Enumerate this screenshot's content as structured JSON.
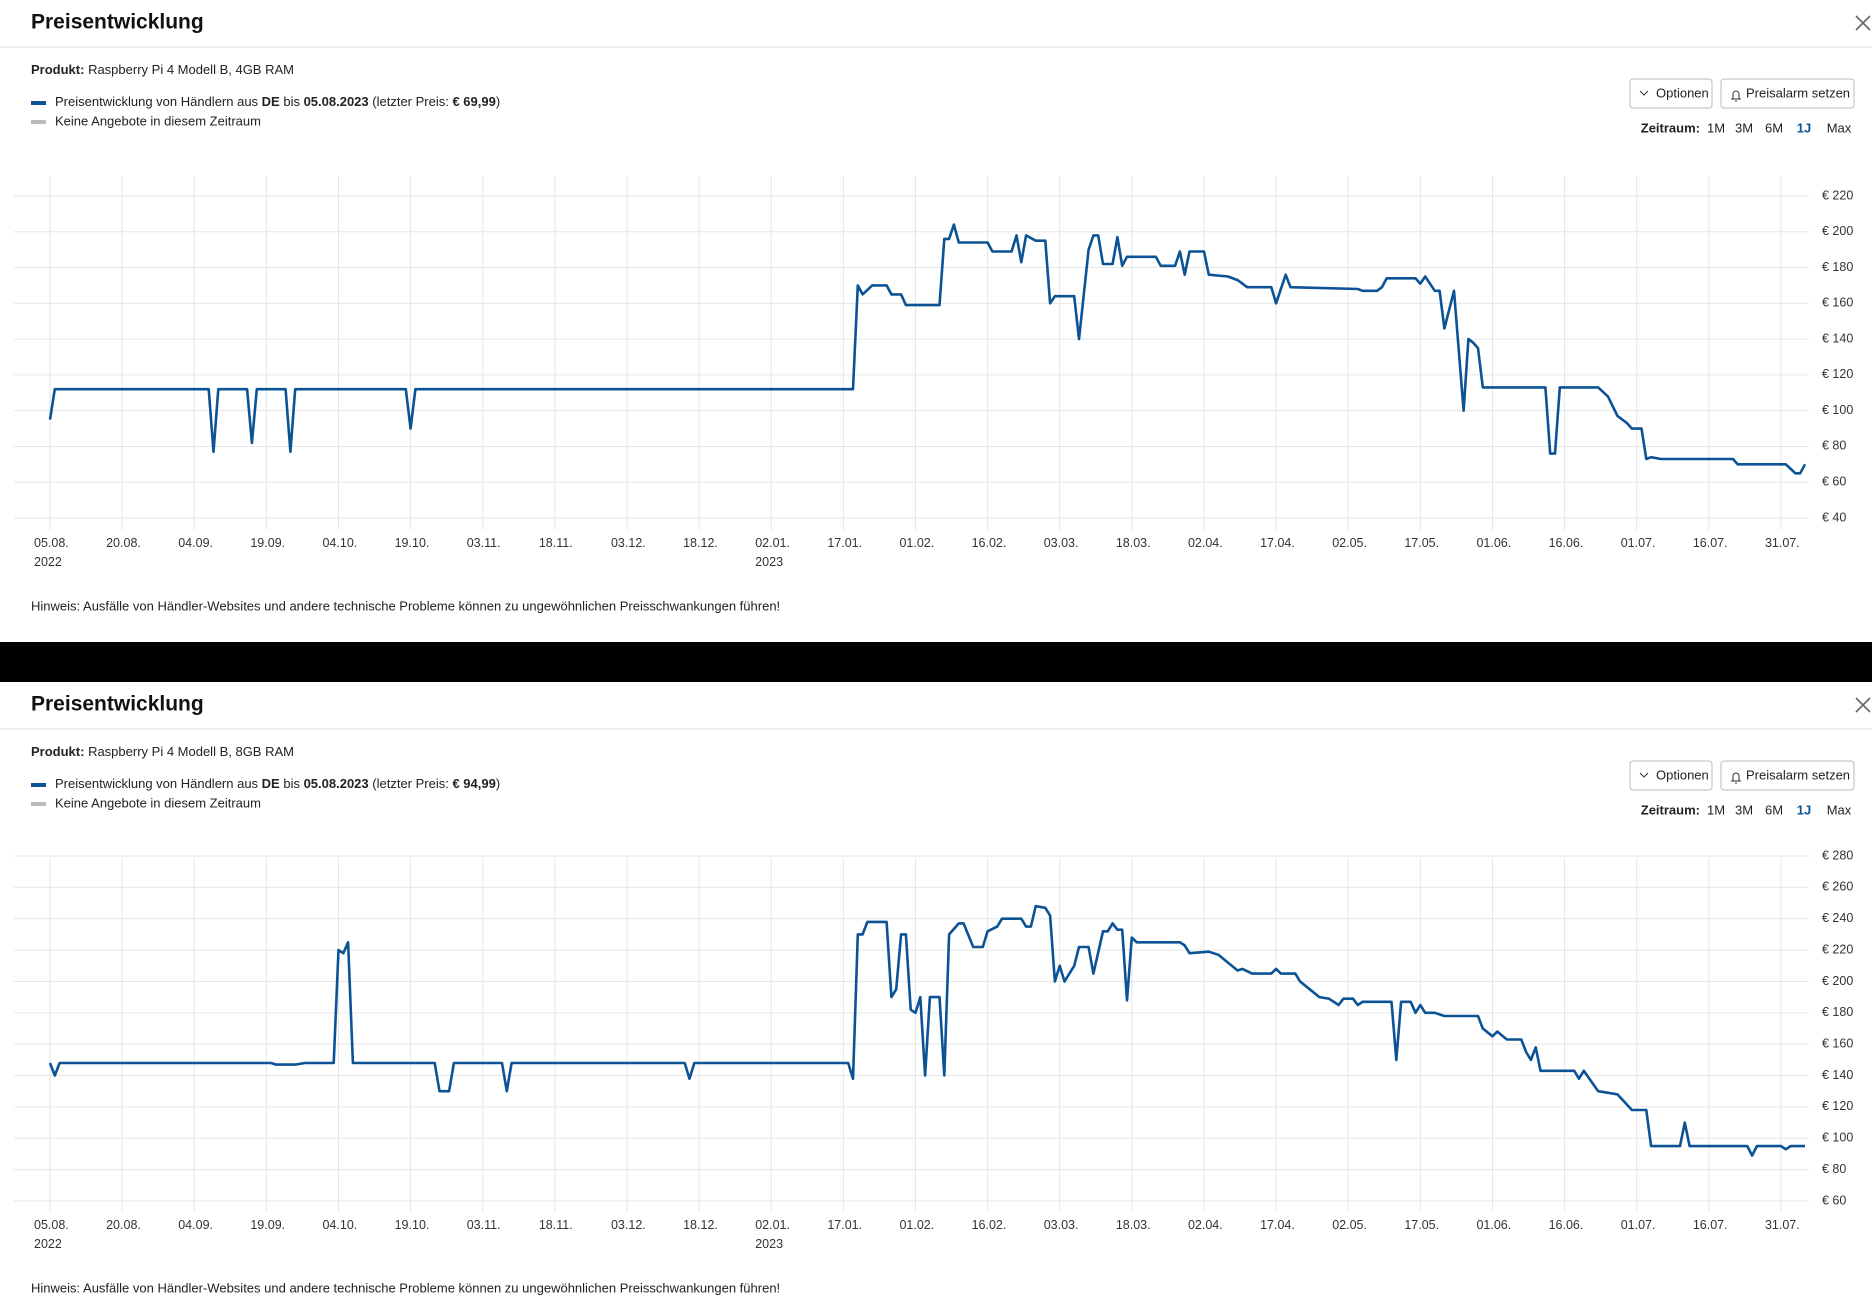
{
  "panels": [
    {
      "title": "Preisentwicklung",
      "product_label": "Produkt:",
      "product": " Raspberry Pi 4 Modell B, 4GB RAM",
      "legend": [
        "Preisentwicklung von Händlern aus ",
        "DE",
        " bis ",
        "05.08.2023",
        " (letzter Preis: ",
        "€ 69,99",
        ")"
      ],
      "legend_gaps": "Keine Angebote in diesem Zeitraum",
      "options": "Optionen",
      "alarm": "Preisalarm setzen",
      "range_label": "Zeitraum:",
      "ranges": [
        "1M",
        "3M",
        "6M",
        "1J",
        "Max"
      ],
      "selected_range": "1J",
      "note": "Hinweis: Ausfälle von Händler-Websites und andere technische Probleme können zu ungewöhnlichen Preisschwankungen führen!"
    },
    {
      "title": "Preisentwicklung",
      "product_label": "Produkt:",
      "product": " Raspberry Pi 4 Modell B, 8GB RAM",
      "legend": [
        "Preisentwicklung von Händlern aus ",
        "DE",
        " bis ",
        "05.08.2023",
        " (letzter Preis: ",
        "€ 94,99",
        ")"
      ],
      "legend_gaps": "Keine Angebote in diesem Zeitraum",
      "options": "Optionen",
      "alarm": "Preisalarm setzen",
      "range_label": "Zeitraum:",
      "ranges": [
        "1M",
        "3M",
        "6M",
        "1J",
        "Max"
      ],
      "selected_range": "1J",
      "note": "Hinweis: Ausfälle von Händler-Websites und andere technische Probleme können zu ungewöhnlichen Preisschwankungen führen!"
    }
  ],
  "chart_data": [
    {
      "type": "line",
      "color": "#0b5394",
      "grid": true,
      "xlim": [
        "2022-08-05",
        "2023-08-05"
      ],
      "xticks": [
        {
          "value": "2022-08-05",
          "label": "05.08.\n2022"
        },
        {
          "value": "2022-08-20",
          "label": "20.08."
        },
        {
          "value": "2022-09-04",
          "label": "04.09."
        },
        {
          "value": "2022-09-19",
          "label": "19.09."
        },
        {
          "value": "2022-10-04",
          "label": "04.10."
        },
        {
          "value": "2022-10-19",
          "label": "19.10."
        },
        {
          "value": "2022-11-03",
          "label": "03.11."
        },
        {
          "value": "2022-11-18",
          "label": "18.11."
        },
        {
          "value": "2022-12-03",
          "label": "03.12."
        },
        {
          "value": "2022-12-18",
          "label": "18.12."
        },
        {
          "value": "2023-01-02",
          "label": "02.01.\n2023"
        },
        {
          "value": "2023-01-17",
          "label": "17.01."
        },
        {
          "value": "2023-02-01",
          "label": "01.02."
        },
        {
          "value": "2023-02-16",
          "label": "16.02."
        },
        {
          "value": "2023-03-03",
          "label": "03.03."
        },
        {
          "value": "2023-03-18",
          "label": "18.03."
        },
        {
          "value": "2023-04-02",
          "label": "02.04."
        },
        {
          "value": "2023-04-17",
          "label": "17.04."
        },
        {
          "value": "2023-05-02",
          "label": "02.05."
        },
        {
          "value": "2023-05-17",
          "label": "17.05."
        },
        {
          "value": "2023-06-01",
          "label": "01.06."
        },
        {
          "value": "2023-06-16",
          "label": "16.06."
        },
        {
          "value": "2023-07-01",
          "label": "01.07."
        },
        {
          "value": "2023-07-16",
          "label": "16.07."
        },
        {
          "value": "2023-07-31",
          "label": "31.07."
        }
      ],
      "ylim": [
        40,
        220
      ],
      "yticks": [
        {
          "value": 40,
          "label": "€ 40"
        },
        {
          "value": 60,
          "label": "€ 60"
        },
        {
          "value": 80,
          "label": "€ 80"
        },
        {
          "value": 100,
          "label": "€ 100"
        },
        {
          "value": 120,
          "label": "€ 120"
        },
        {
          "value": 140,
          "label": "€ 140"
        },
        {
          "value": 160,
          "label": "€ 160"
        },
        {
          "value": 180,
          "label": "€ 180"
        },
        {
          "value": 200,
          "label": "€ 200"
        },
        {
          "value": 220,
          "label": "€ 220"
        }
      ],
      "x": [
        "2022-08-05",
        "2022-08-06",
        "2022-09-07",
        "2022-09-08",
        "2022-09-09",
        "2022-09-15",
        "2022-09-16",
        "2022-09-17",
        "2022-09-23",
        "2022-09-24",
        "2022-09-25",
        "2022-10-18",
        "2022-10-19",
        "2022-10-20",
        "2023-01-19",
        "2023-01-20",
        "2023-01-21",
        "2023-01-23",
        "2023-01-26",
        "2023-01-27",
        "2023-01-29",
        "2023-01-30",
        "2023-02-06",
        "2023-02-07",
        "2023-02-08",
        "2023-02-09",
        "2023-02-10",
        "2023-02-16",
        "2023-02-17",
        "2023-02-21",
        "2023-02-22",
        "2023-02-23",
        "2023-02-24",
        "2023-02-26",
        "2023-02-28",
        "2023-03-01",
        "2023-03-02",
        "2023-03-06",
        "2023-03-07",
        "2023-03-09",
        "2023-03-10",
        "2023-03-11",
        "2023-03-12",
        "2023-03-14",
        "2023-03-15",
        "2023-03-16",
        "2023-03-17",
        "2023-03-23",
        "2023-03-24",
        "2023-03-27",
        "2023-03-28",
        "2023-03-29",
        "2023-03-30",
        "2023-04-02",
        "2023-04-03",
        "2023-04-07",
        "2023-04-09",
        "2023-04-11",
        "2023-04-16",
        "2023-04-17",
        "2023-04-19",
        "2023-04-20",
        "2023-05-04",
        "2023-05-05",
        "2023-05-08",
        "2023-05-09",
        "2023-05-10",
        "2023-05-16",
        "2023-05-17",
        "2023-05-18",
        "2023-05-20",
        "2023-05-21",
        "2023-05-22",
        "2023-05-24",
        "2023-05-26",
        "2023-05-27",
        "2023-05-28",
        "2023-05-29",
        "2023-05-30",
        "2023-06-12",
        "2023-06-13",
        "2023-06-14",
        "2023-06-15",
        "2023-06-23",
        "2023-06-25",
        "2023-06-27",
        "2023-06-29",
        "2023-06-30",
        "2023-07-02",
        "2023-07-03",
        "2023-07-04",
        "2023-07-06",
        "2023-07-21",
        "2023-07-22",
        "2023-08-01",
        "2023-08-03",
        "2023-08-04",
        "2023-08-05"
      ],
      "values": [
        95,
        112,
        112,
        77,
        112,
        112,
        82,
        112,
        112,
        77,
        112,
        112,
        90,
        112,
        112,
        170,
        165,
        170,
        170,
        165,
        165,
        159,
        159,
        196,
        196,
        204,
        194,
        194,
        189,
        189,
        198,
        183,
        198,
        195,
        195,
        160,
        164,
        164,
        140,
        190,
        198,
        198,
        182,
        182,
        197,
        181,
        186,
        186,
        181,
        181,
        189,
        176,
        189,
        189,
        176,
        175,
        173,
        169,
        169,
        160,
        176,
        169,
        168,
        167,
        167,
        169,
        174,
        174,
        171,
        175,
        167,
        167,
        146,
        167,
        100,
        140,
        138,
        135,
        113,
        113,
        76,
        76,
        113,
        113,
        108,
        97,
        93,
        90,
        90,
        73,
        74,
        73,
        73,
        70,
        70,
        65,
        65,
        70
      ]
    },
    {
      "type": "line",
      "color": "#0b5394",
      "grid": true,
      "xlim": [
        "2022-08-05",
        "2023-08-05"
      ],
      "xticks": [
        {
          "value": "2022-08-05",
          "label": "05.08.\n2022"
        },
        {
          "value": "2022-08-20",
          "label": "20.08."
        },
        {
          "value": "2022-09-04",
          "label": "04.09."
        },
        {
          "value": "2022-09-19",
          "label": "19.09."
        },
        {
          "value": "2022-10-04",
          "label": "04.10."
        },
        {
          "value": "2022-10-19",
          "label": "19.10."
        },
        {
          "value": "2022-11-03",
          "label": "03.11."
        },
        {
          "value": "2022-11-18",
          "label": "18.11."
        },
        {
          "value": "2022-12-03",
          "label": "03.12."
        },
        {
          "value": "2022-12-18",
          "label": "18.12."
        },
        {
          "value": "2023-01-02",
          "label": "02.01.\n2023"
        },
        {
          "value": "2023-01-17",
          "label": "17.01."
        },
        {
          "value": "2023-02-01",
          "label": "01.02."
        },
        {
          "value": "2023-02-16",
          "label": "16.02."
        },
        {
          "value": "2023-03-03",
          "label": "03.03."
        },
        {
          "value": "2023-03-18",
          "label": "18.03."
        },
        {
          "value": "2023-04-02",
          "label": "02.04."
        },
        {
          "value": "2023-04-17",
          "label": "17.04."
        },
        {
          "value": "2023-05-02",
          "label": "02.05."
        },
        {
          "value": "2023-05-17",
          "label": "17.05."
        },
        {
          "value": "2023-06-01",
          "label": "01.06."
        },
        {
          "value": "2023-06-16",
          "label": "16.06."
        },
        {
          "value": "2023-07-01",
          "label": "01.07."
        },
        {
          "value": "2023-07-16",
          "label": "16.07."
        },
        {
          "value": "2023-07-31",
          "label": "31.07."
        }
      ],
      "ylim": [
        60,
        280
      ],
      "yticks": [
        {
          "value": 60,
          "label": "€ 60"
        },
        {
          "value": 80,
          "label": "€ 80"
        },
        {
          "value": 100,
          "label": "€ 100"
        },
        {
          "value": 120,
          "label": "€ 120"
        },
        {
          "value": 140,
          "label": "€ 140"
        },
        {
          "value": 160,
          "label": "€ 160"
        },
        {
          "value": 180,
          "label": "€ 180"
        },
        {
          "value": 200,
          "label": "€ 200"
        },
        {
          "value": 220,
          "label": "€ 220"
        },
        {
          "value": 240,
          "label": "€ 240"
        },
        {
          "value": 260,
          "label": "€ 260"
        },
        {
          "value": 280,
          "label": "€ 280"
        }
      ],
      "x": [
        "2022-08-05",
        "2022-08-06",
        "2022-08-07",
        "2022-09-20",
        "2022-09-21",
        "2022-09-25",
        "2022-09-27",
        "2022-10-03",
        "2022-10-04",
        "2022-10-05",
        "2022-10-06",
        "2022-10-07",
        "2022-10-24",
        "2022-10-25",
        "2022-10-27",
        "2022-10-28",
        "2022-11-07",
        "2022-11-08",
        "2022-11-09",
        "2022-12-15",
        "2022-12-16",
        "2022-12-17",
        "2023-01-18",
        "2023-01-19",
        "2023-01-20",
        "2023-01-21",
        "2023-01-22",
        "2023-01-26",
        "2023-01-27",
        "2023-01-28",
        "2023-01-29",
        "2023-01-30",
        "2023-01-31",
        "2023-02-01",
        "2023-02-02",
        "2023-02-03",
        "2023-02-04",
        "2023-02-06",
        "2023-02-07",
        "2023-02-08",
        "2023-02-10",
        "2023-02-11",
        "2023-02-13",
        "2023-02-15",
        "2023-02-16",
        "2023-02-18",
        "2023-02-19",
        "2023-02-23",
        "2023-02-24",
        "2023-02-25",
        "2023-02-26",
        "2023-02-28",
        "2023-03-01",
        "2023-03-02",
        "2023-03-03",
        "2023-03-04",
        "2023-03-06",
        "2023-03-07",
        "2023-03-09",
        "2023-03-10",
        "2023-03-12",
        "2023-03-13",
        "2023-03-14",
        "2023-03-15",
        "2023-03-16",
        "2023-03-17",
        "2023-03-18",
        "2023-03-19",
        "2023-03-28",
        "2023-03-29",
        "2023-03-30",
        "2023-04-03",
        "2023-04-05",
        "2023-04-07",
        "2023-04-09",
        "2023-04-10",
        "2023-04-12",
        "2023-04-16",
        "2023-04-17",
        "2023-04-18",
        "2023-04-21",
        "2023-04-22",
        "2023-04-24",
        "2023-04-26",
        "2023-04-28",
        "2023-04-30",
        "2023-05-01",
        "2023-05-03",
        "2023-05-04",
        "2023-05-05",
        "2023-05-11",
        "2023-05-12",
        "2023-05-13",
        "2023-05-15",
        "2023-05-16",
        "2023-05-17",
        "2023-05-18",
        "2023-05-20",
        "2023-05-22",
        "2023-05-29",
        "2023-05-30",
        "2023-06-01",
        "2023-06-02",
        "2023-06-04",
        "2023-06-07",
        "2023-06-08",
        "2023-06-09",
        "2023-06-10",
        "2023-06-11",
        "2023-06-18",
        "2023-06-19",
        "2023-06-20",
        "2023-06-23",
        "2023-06-27",
        "2023-06-30",
        "2023-07-03",
        "2023-07-04",
        "2023-07-10",
        "2023-07-11",
        "2023-07-12",
        "2023-07-24",
        "2023-07-25",
        "2023-07-26",
        "2023-07-31",
        "2023-08-01",
        "2023-08-02",
        "2023-08-05"
      ],
      "values": [
        148,
        140,
        148,
        148,
        147,
        147,
        148,
        148,
        220,
        218,
        225,
        148,
        148,
        130,
        130,
        148,
        148,
        130,
        148,
        148,
        138,
        148,
        148,
        138,
        230,
        230,
        238,
        238,
        190,
        195,
        230,
        230,
        182,
        180,
        190,
        140,
        190,
        190,
        140,
        230,
        237,
        237,
        222,
        222,
        232,
        235,
        240,
        240,
        235,
        235,
        248,
        247,
        242,
        200,
        210,
        200,
        210,
        222,
        222,
        205,
        232,
        232,
        237,
        233,
        233,
        188,
        228,
        225,
        225,
        223,
        218,
        219,
        217,
        212,
        207,
        208,
        205,
        205,
        208,
        205,
        205,
        200,
        195,
        190,
        189,
        185,
        189,
        189,
        185,
        187,
        187,
        150,
        187,
        187,
        180,
        185,
        180,
        180,
        178,
        178,
        170,
        165,
        168,
        163,
        163,
        155,
        150,
        158,
        143,
        143,
        138,
        143,
        130,
        128,
        118,
        118,
        95,
        95,
        110,
        95,
        95,
        89,
        95,
        95,
        93,
        95,
        95
      ]
    }
  ]
}
